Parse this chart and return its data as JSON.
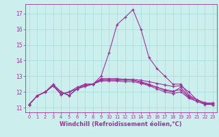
{
  "xlabel": "Windchill (Refroidissement éolien,°C)",
  "xlim": [
    -0.5,
    23.5
  ],
  "ylim": [
    10.7,
    17.6
  ],
  "yticks": [
    11,
    12,
    13,
    14,
    15,
    16,
    17
  ],
  "xticks": [
    0,
    1,
    2,
    3,
    4,
    5,
    6,
    7,
    8,
    9,
    10,
    11,
    12,
    13,
    14,
    15,
    16,
    17,
    18,
    19,
    20,
    21,
    22,
    23
  ],
  "bg_color": "#cceeed",
  "line_color": "#993399",
  "grid_color": "#aadddd",
  "lines": [
    [
      11.2,
      11.75,
      12.0,
      12.5,
      12.0,
      11.75,
      12.2,
      12.35,
      12.5,
      13.0,
      14.5,
      16.3,
      16.75,
      17.25,
      16.0,
      14.2,
      13.5,
      13.0,
      12.5,
      12.5,
      11.8,
      11.5,
      11.3,
      11.3
    ],
    [
      11.2,
      11.75,
      12.0,
      12.4,
      11.85,
      12.0,
      12.2,
      12.5,
      12.5,
      12.8,
      12.8,
      12.8,
      12.8,
      12.8,
      12.75,
      12.65,
      12.55,
      12.45,
      12.35,
      12.4,
      12.0,
      11.5,
      11.3,
      11.25
    ],
    [
      11.2,
      11.75,
      12.0,
      12.4,
      11.85,
      12.0,
      12.3,
      12.5,
      12.5,
      12.75,
      12.75,
      12.75,
      12.75,
      12.75,
      12.6,
      12.45,
      12.3,
      12.15,
      12.05,
      12.15,
      11.65,
      11.4,
      11.25,
      11.2
    ],
    [
      11.2,
      11.75,
      12.0,
      12.4,
      11.85,
      12.0,
      12.2,
      12.4,
      12.5,
      12.7,
      12.7,
      12.7,
      12.65,
      12.65,
      12.55,
      12.4,
      12.2,
      12.0,
      11.9,
      12.0,
      11.6,
      11.4,
      11.2,
      11.2
    ],
    [
      11.2,
      11.75,
      12.0,
      12.4,
      12.0,
      11.8,
      12.2,
      12.4,
      12.5,
      12.85,
      12.85,
      12.85,
      12.8,
      12.75,
      12.65,
      12.5,
      12.3,
      12.1,
      12.0,
      12.3,
      11.7,
      11.5,
      11.3,
      11.2
    ]
  ]
}
